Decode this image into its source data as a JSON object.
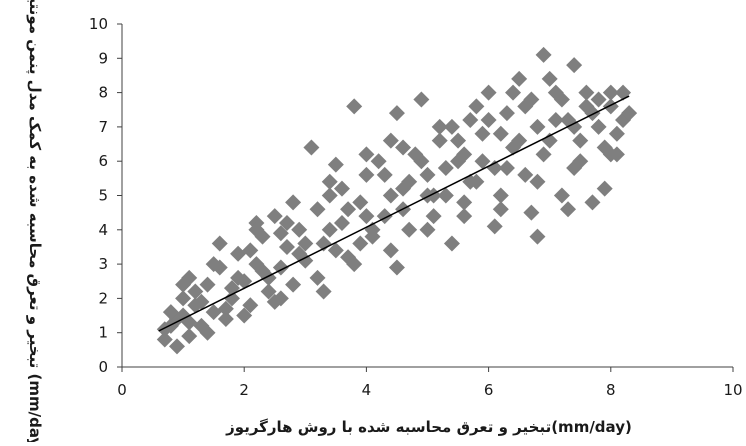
{
  "chart_data": {
    "type": "scatter",
    "xlabel": "تبخیر و تعرق محاسبه شده با روش هارگریوز(mm/day)",
    "ylabel": "تبخیر و تعرق محاسبه شده به کمک مدل پنمن مونتیث فائو (mm/day)",
    "xlim": [
      0,
      10
    ],
    "ylim": [
      0,
      10
    ],
    "x_ticks": [
      "0",
      "2",
      "4",
      "6",
      "8",
      "10"
    ],
    "y_ticks": [
      "0",
      "1",
      "2",
      "3",
      "4",
      "5",
      "6",
      "7",
      "8",
      "9",
      "10"
    ],
    "grid": false,
    "legend": "none",
    "marker": "diamond",
    "marker_color": "#7f7f7f",
    "trendline": {
      "x": [
        0.6,
        8.3
      ],
      "y": [
        1.05,
        7.9
      ],
      "color": "#000000"
    },
    "points": [
      [
        0.7,
        0.8
      ],
      [
        0.8,
        1.2
      ],
      [
        0.9,
        0.6
      ],
      [
        1.0,
        1.5
      ],
      [
        1.1,
        0.9
      ],
      [
        1.2,
        1.8
      ],
      [
        0.9,
        1.4
      ],
      [
        1.0,
        2.0
      ],
      [
        1.3,
        1.2
      ],
      [
        1.4,
        2.4
      ],
      [
        1.5,
        1.6
      ],
      [
        1.1,
        2.6
      ],
      [
        1.6,
        2.9
      ],
      [
        1.7,
        1.4
      ],
      [
        1.8,
        2.0
      ],
      [
        1.9,
        3.3
      ],
      [
        2.0,
        2.5
      ],
      [
        2.1,
        1.8
      ],
      [
        2.2,
        3.0
      ],
      [
        2.3,
        3.8
      ],
      [
        2.4,
        2.2
      ],
      [
        2.5,
        4.4
      ],
      [
        2.6,
        2.9
      ],
      [
        2.2,
        4.2
      ],
      [
        2.7,
        3.5
      ],
      [
        2.8,
        2.4
      ],
      [
        2.9,
        4.0
      ],
      [
        3.0,
        3.1
      ],
      [
        3.1,
        6.4
      ],
      [
        3.2,
        4.6
      ],
      [
        3.3,
        3.6
      ],
      [
        3.4,
        5.0
      ],
      [
        3.5,
        5.9
      ],
      [
        3.6,
        4.2
      ],
      [
        3.7,
        3.2
      ],
      [
        3.8,
        7.6
      ],
      [
        3.9,
        4.8
      ],
      [
        4.0,
        5.6
      ],
      [
        4.1,
        3.8
      ],
      [
        4.2,
        6.0
      ],
      [
        4.3,
        4.4
      ],
      [
        4.4,
        6.6
      ],
      [
        4.5,
        7.4
      ],
      [
        4.6,
        5.2
      ],
      [
        4.7,
        4.0
      ],
      [
        4.8,
        6.2
      ],
      [
        4.9,
        7.8
      ],
      [
        5.0,
        5.6
      ],
      [
        5.1,
        4.4
      ],
      [
        5.2,
        6.6
      ],
      [
        5.3,
        5.0
      ],
      [
        5.4,
        7.0
      ],
      [
        5.5,
        6.0
      ],
      [
        5.6,
        4.8
      ],
      [
        5.7,
        7.2
      ],
      [
        5.8,
        5.4
      ],
      [
        5.9,
        6.8
      ],
      [
        6.0,
        8.0
      ],
      [
        6.1,
        5.8
      ],
      [
        6.2,
        4.6
      ],
      [
        6.3,
        7.4
      ],
      [
        6.4,
        6.4
      ],
      [
        6.5,
        8.4
      ],
      [
        6.6,
        5.6
      ],
      [
        6.7,
        7.8
      ],
      [
        6.8,
        3.8
      ],
      [
        6.9,
        9.1
      ],
      [
        7.0,
        6.6
      ],
      [
        7.1,
        8.0
      ],
      [
        7.2,
        5.0
      ],
      [
        7.3,
        7.2
      ],
      [
        7.4,
        8.8
      ],
      [
        7.5,
        6.0
      ],
      [
        7.6,
        7.6
      ],
      [
        7.7,
        4.8
      ],
      [
        7.8,
        7.0
      ],
      [
        7.9,
        6.4
      ],
      [
        8.0,
        8.0
      ],
      [
        8.1,
        6.2
      ],
      [
        8.2,
        7.2
      ],
      [
        0.8,
        1.6
      ],
      [
        1.2,
        2.2
      ],
      [
        1.5,
        3.0
      ],
      [
        1.9,
        2.6
      ],
      [
        2.3,
        2.8
      ],
      [
        2.6,
        3.9
      ],
      [
        3.0,
        3.6
      ],
      [
        3.4,
        4.0
      ],
      [
        3.7,
        4.6
      ],
      [
        4.0,
        4.4
      ],
      [
        4.4,
        5.0
      ],
      [
        4.7,
        5.4
      ],
      [
        5.0,
        5.0
      ],
      [
        5.3,
        5.8
      ],
      [
        5.6,
        6.2
      ],
      [
        5.9,
        6.0
      ],
      [
        6.2,
        6.8
      ],
      [
        6.5,
        6.6
      ],
      [
        6.8,
        7.0
      ],
      [
        7.1,
        7.2
      ],
      [
        7.4,
        7.0
      ],
      [
        7.7,
        7.4
      ],
      [
        8.0,
        7.6
      ],
      [
        1.4,
        1.0
      ],
      [
        2.0,
        1.5
      ],
      [
        2.6,
        2.0
      ],
      [
        3.2,
        2.6
      ],
      [
        3.8,
        3.0
      ],
      [
        4.4,
        3.4
      ],
      [
        5.0,
        4.0
      ],
      [
        5.6,
        4.4
      ],
      [
        6.2,
        5.0
      ],
      [
        6.8,
        5.4
      ],
      [
        7.4,
        5.8
      ],
      [
        8.0,
        6.2
      ],
      [
        1.0,
        2.4
      ],
      [
        1.6,
        3.6
      ],
      [
        2.2,
        4.0
      ],
      [
        2.8,
        4.8
      ],
      [
        3.4,
        5.4
      ],
      [
        4.0,
        6.2
      ],
      [
        4.6,
        6.4
      ],
      [
        5.2,
        7.0
      ],
      [
        5.8,
        7.6
      ],
      [
        6.4,
        8.0
      ],
      [
        7.0,
        8.4
      ],
      [
        7.6,
        8.0
      ],
      [
        8.2,
        8.0
      ],
      [
        1.3,
        1.9
      ],
      [
        1.8,
        2.3
      ],
      [
        2.4,
        2.6
      ],
      [
        2.9,
        3.3
      ],
      [
        3.5,
        3.4
      ],
      [
        4.1,
        4.0
      ],
      [
        4.6,
        4.6
      ],
      [
        5.1,
        5.0
      ],
      [
        5.7,
        5.4
      ],
      [
        6.3,
        5.8
      ],
      [
        6.9,
        6.2
      ],
      [
        7.5,
        6.6
      ],
      [
        8.1,
        6.8
      ],
      [
        0.7,
        1.1
      ],
      [
        1.1,
        1.3
      ],
      [
        1.7,
        1.7
      ],
      [
        2.5,
        1.9
      ],
      [
        3.3,
        2.2
      ],
      [
        3.9,
        3.6
      ],
      [
        4.5,
        2.9
      ],
      [
        5.4,
        3.6
      ],
      [
        6.1,
        4.1
      ],
      [
        6.7,
        4.5
      ],
      [
        7.3,
        4.6
      ],
      [
        7.9,
        5.2
      ],
      [
        2.1,
        3.4
      ],
      [
        2.7,
        4.2
      ],
      [
        3.6,
        5.2
      ],
      [
        4.3,
        5.6
      ],
      [
        4.9,
        6.0
      ],
      [
        5.5,
        6.6
      ],
      [
        6.0,
        7.2
      ],
      [
        6.6,
        7.6
      ],
      [
        7.2,
        7.8
      ],
      [
        7.8,
        7.8
      ],
      [
        8.3,
        7.4
      ]
    ]
  }
}
